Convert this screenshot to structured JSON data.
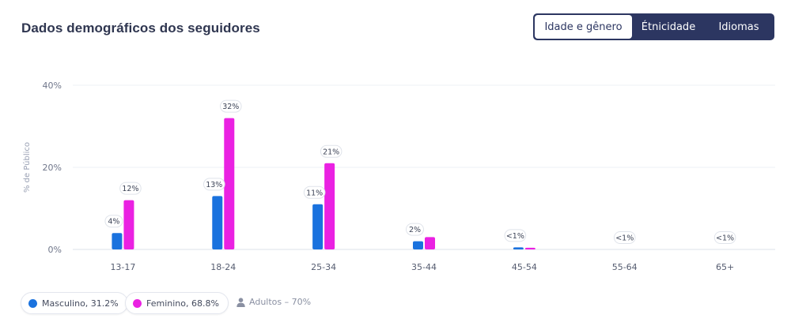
{
  "header": {
    "title": "Dados demográficos dos seguidores"
  },
  "tabs": [
    {
      "label": "Idade e gênero",
      "active": true
    },
    {
      "label": "Étnicidade",
      "active": false
    },
    {
      "label": "Idiomas",
      "active": false
    }
  ],
  "colors": {
    "male": "#1a72de",
    "female": "#ea21e2",
    "tabs_bg": "#2c3661"
  },
  "chart_data": {
    "type": "bar",
    "ylabel": "% de Público",
    "ylim": [
      0,
      40
    ],
    "yticks": [
      "0%",
      "20%",
      "40%"
    ],
    "ytick_values": [
      0,
      20,
      40
    ],
    "grid": true,
    "categories": [
      "13-17",
      "18-24",
      "25-34",
      "35-44",
      "45-54",
      "55-64",
      "65+"
    ],
    "series": [
      {
        "name": "Masculino",
        "values": [
          4,
          13,
          11,
          2,
          0.5,
          0,
          0
        ]
      },
      {
        "name": "Feminino",
        "values": [
          12,
          32,
          21,
          3,
          0.4,
          0,
          0
        ]
      }
    ],
    "data_labels": {
      "male": [
        "4%",
        "13%",
        "11%",
        "2%",
        "<1%",
        "<1%",
        "<1%"
      ],
      "female": [
        "12%",
        "32%",
        "21%",
        "",
        "",
        "",
        ""
      ]
    }
  },
  "legend": {
    "male_label": "Masculino, 31.2%",
    "female_label": "Feminino, 68.8%",
    "adults_label": "Adultos – 70%",
    "adults_icon": "user-icon"
  }
}
